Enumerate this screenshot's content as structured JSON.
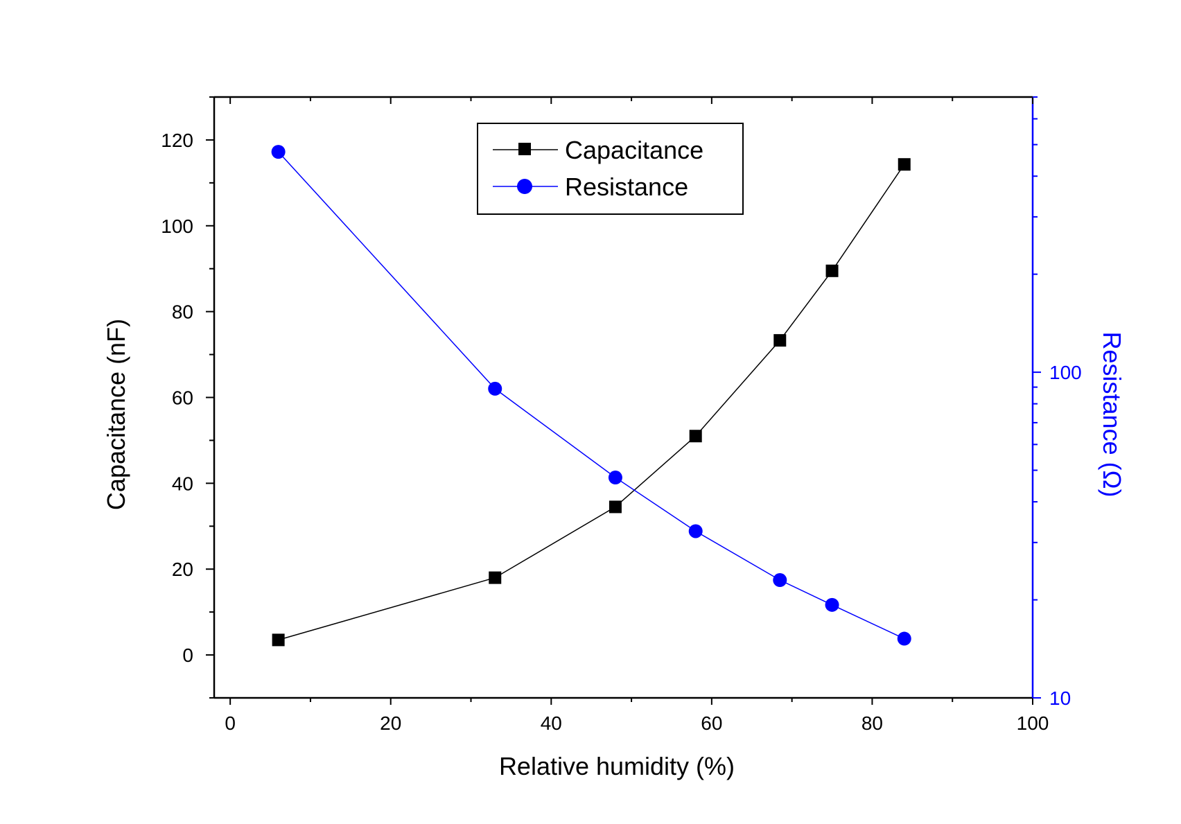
{
  "chart_data": {
    "type": "line",
    "xlabel": "Relative humidity (%)",
    "ylabel": "Capacitance (nF)",
    "y2label": "Resistance (Ω)",
    "xlim": [
      -2,
      100
    ],
    "ylim": [
      -10,
      130
    ],
    "y2lim": [
      10,
      700
    ],
    "y2scale": "log",
    "xticks": [
      "0",
      "20",
      "40",
      "60",
      "80",
      "100"
    ],
    "yticks": [
      "0",
      "20",
      "40",
      "60",
      "80",
      "100",
      "120"
    ],
    "y2ticks": [
      "10",
      "100"
    ],
    "grid": false,
    "legend": "top-center",
    "x": [
      6,
      33,
      48,
      58,
      68.5,
      75,
      84
    ],
    "series": [
      {
        "name": "Capacitance",
        "axis": "left",
        "marker": "square",
        "color": "#000000",
        "values": [
          3.5,
          18,
          34.5,
          51,
          73.3,
          89.5,
          114.3
        ]
      },
      {
        "name": "Resistance",
        "axis": "right",
        "marker": "circle",
        "color": "#0000ff",
        "values": [
          475,
          89,
          47.5,
          32.5,
          23,
          19.3,
          15.2
        ]
      }
    ],
    "colors": {
      "left_axis": "#000000",
      "right_axis": "#0000ff"
    }
  }
}
